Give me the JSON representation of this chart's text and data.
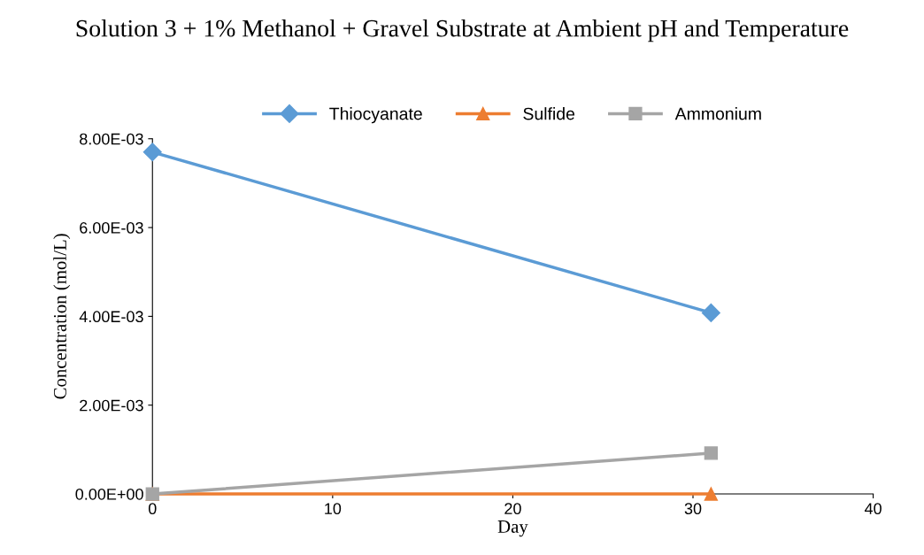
{
  "chart_data": {
    "type": "line",
    "title": "Solution 3 + 1% Methanol + Gravel Substrate at Ambient pH and Temperature",
    "xlabel": "Day",
    "ylabel": "Concentration (mol/L)",
    "x": [
      0,
      31
    ],
    "series": [
      {
        "name": "Thiocyanate",
        "color": "#5b9bd5",
        "marker": "diamond",
        "values": [
          0.0077,
          0.00408
        ]
      },
      {
        "name": "Sulfide",
        "color": "#ed7d31",
        "marker": "triangle",
        "values": [
          0,
          0
        ]
      },
      {
        "name": "Ammonium",
        "color": "#a5a5a5",
        "marker": "square",
        "values": [
          0,
          0.00092
        ]
      }
    ],
    "xlim": [
      0,
      40
    ],
    "xticks": [
      0,
      10,
      20,
      30,
      40
    ],
    "ylim": [
      0,
      0.008
    ],
    "yticks": [
      {
        "value": 0,
        "label": "0.00E+00"
      },
      {
        "value": 0.002,
        "label": "2.00E-03"
      },
      {
        "value": 0.004,
        "label": "4.00E-03"
      },
      {
        "value": 0.006,
        "label": "6.00E-03"
      },
      {
        "value": 0.008,
        "label": "8.00E-03"
      }
    ],
    "grid": false,
    "legend": "top",
    "line_style": "solid"
  }
}
